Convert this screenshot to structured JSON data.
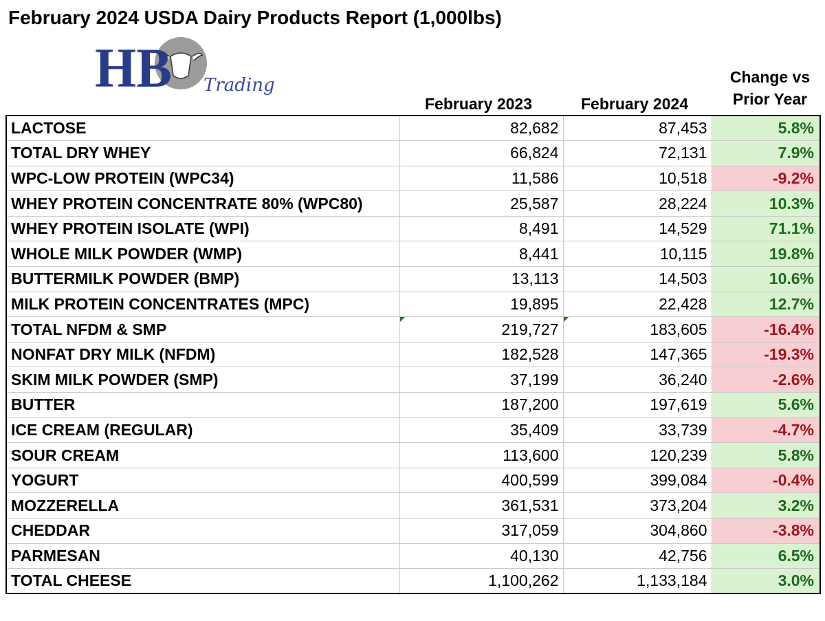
{
  "title": "February 2024 USDA Dairy Products Report (1,000lbs)",
  "logo": {
    "letters": "HB",
    "tagline": "Trading"
  },
  "colors": {
    "positive_fill": "#d9f2d0",
    "positive_text": "#1d6b1d",
    "negative_fill": "#f7cfd3",
    "negative_text": "#a1151d"
  },
  "chart_data": {
    "type": "table",
    "title": "February 2024 USDA Dairy Products Report (1,000lbs)",
    "columns": [
      "February 2023",
      "February 2024",
      "Change vs Prior Year"
    ],
    "rows": [
      {
        "product": "LACTOSE",
        "feb_2023": "82,682",
        "feb_2024": "87,453",
        "change": "5.8%",
        "direction": "pos"
      },
      {
        "product": "TOTAL DRY WHEY",
        "feb_2023": "66,824",
        "feb_2024": "72,131",
        "change": "7.9%",
        "direction": "pos"
      },
      {
        "product": "WPC-LOW PROTEIN (WPC34)",
        "feb_2023": "11,586",
        "feb_2024": "10,518",
        "change": "-9.2%",
        "direction": "neg"
      },
      {
        "product": "WHEY PROTEIN CONCENTRATE 80% (WPC80)",
        "feb_2023": "25,587",
        "feb_2024": "28,224",
        "change": "10.3%",
        "direction": "pos"
      },
      {
        "product": "WHEY PROTEIN ISOLATE (WPI)",
        "feb_2023": "8,491",
        "feb_2024": "14,529",
        "change": "71.1%",
        "direction": "pos"
      },
      {
        "product": "WHOLE MILK POWDER (WMP)",
        "feb_2023": "8,441",
        "feb_2024": "10,115",
        "change": "19.8%",
        "direction": "pos"
      },
      {
        "product": "BUTTERMILK POWDER (BMP)",
        "feb_2023": "13,113",
        "feb_2024": "14,503",
        "change": "10.6%",
        "direction": "pos"
      },
      {
        "product": "MILK PROTEIN CONCENTRATES (MPC)",
        "feb_2023": "19,895",
        "feb_2024": "22,428",
        "change": "12.7%",
        "direction": "pos"
      },
      {
        "product": "TOTAL NFDM & SMP",
        "feb_2023": "219,727",
        "feb_2024": "183,605",
        "change": "-16.4%",
        "direction": "neg",
        "flag": true
      },
      {
        "product": "NONFAT DRY MILK (NFDM)",
        "feb_2023": "182,528",
        "feb_2024": "147,365",
        "change": "-19.3%",
        "direction": "neg"
      },
      {
        "product": "SKIM MILK POWDER (SMP)",
        "feb_2023": "37,199",
        "feb_2024": "36,240",
        "change": "-2.6%",
        "direction": "neg"
      },
      {
        "product": "BUTTER",
        "feb_2023": "187,200",
        "feb_2024": "197,619",
        "change": "5.6%",
        "direction": "pos"
      },
      {
        "product": "ICE CREAM (REGULAR)",
        "feb_2023": "35,409",
        "feb_2024": "33,739",
        "change": "-4.7%",
        "direction": "neg"
      },
      {
        "product": "SOUR CREAM",
        "feb_2023": "113,600",
        "feb_2024": "120,239",
        "change": "5.8%",
        "direction": "pos"
      },
      {
        "product": "YOGURT",
        "feb_2023": "400,599",
        "feb_2024": "399,084",
        "change": "-0.4%",
        "direction": "neg"
      },
      {
        "product": "MOZZERELLA",
        "feb_2023": "361,531",
        "feb_2024": "373,204",
        "change": "3.2%",
        "direction": "pos"
      },
      {
        "product": "CHEDDAR",
        "feb_2023": "317,059",
        "feb_2024": "304,860",
        "change": "-3.8%",
        "direction": "neg"
      },
      {
        "product": "PARMESAN",
        "feb_2023": "40,130",
        "feb_2024": "42,756",
        "change": "6.5%",
        "direction": "pos"
      },
      {
        "product": "TOTAL CHEESE",
        "feb_2023": "1,100,262",
        "feb_2024": "1,133,184",
        "change": "3.0%",
        "direction": "pos"
      }
    ]
  }
}
